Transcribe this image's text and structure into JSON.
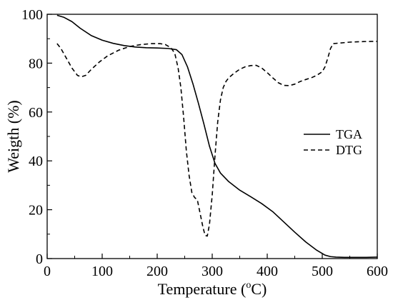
{
  "chart_data": {
    "type": "line",
    "title": "",
    "xlabel": "Temperature (",
    "xlabel_unit_sup": "o",
    "xlabel_unit_end": "C)",
    "ylabel": "Weigth (%)",
    "xlim": [
      0,
      600
    ],
    "ylim": [
      0,
      100
    ],
    "xticks": [
      0,
      100,
      200,
      300,
      400,
      500,
      600
    ],
    "yticks": [
      0,
      20,
      40,
      60,
      80,
      100
    ],
    "grid": false,
    "legend_position": "center-right",
    "series": [
      {
        "name": "TGA",
        "style": "solid",
        "color": "#000000",
        "x": [
          18,
          30,
          45,
          60,
          80,
          100,
          120,
          140,
          160,
          180,
          200,
          220,
          235,
          245,
          255,
          265,
          275,
          285,
          295,
          305,
          315,
          330,
          350,
          370,
          390,
          410,
          430,
          450,
          470,
          490,
          505,
          515,
          525,
          540,
          560,
          580,
          600
        ],
        "y": [
          99.6,
          98.8,
          97,
          94.3,
          91.3,
          89.4,
          88.1,
          87.2,
          86.6,
          86.3,
          86.2,
          86.0,
          85.5,
          83.5,
          78.5,
          71.5,
          63.5,
          55,
          46,
          39,
          35,
          31.5,
          28,
          25.3,
          22.5,
          19.2,
          15,
          10.8,
          6.8,
          3.4,
          1.4,
          0.8,
          0.6,
          0.5,
          0.5,
          0.5,
          0.6
        ]
      },
      {
        "name": "DTG",
        "style": "dashed",
        "color": "#000000",
        "x": [
          18,
          25,
          35,
          45,
          55,
          62,
          70,
          80,
          95,
          110,
          130,
          150,
          170,
          190,
          205,
          215,
          225,
          232,
          238,
          243,
          248,
          253,
          258,
          263,
          268,
          273,
          278,
          283,
          287,
          291,
          295,
          300,
          305,
          310,
          315,
          320,
          325,
          330,
          340,
          350,
          360,
          370,
          380,
          390,
          400,
          410,
          420,
          430,
          440,
          450,
          460,
          470,
          480,
          490,
          500,
          505,
          510,
          515,
          520,
          530,
          550,
          570,
          590,
          600
        ],
        "y": [
          88,
          86,
          82,
          78,
          75,
          74.4,
          75,
          77.4,
          80.5,
          83,
          85.3,
          86.8,
          87.6,
          88,
          88,
          87.6,
          86.3,
          84,
          78,
          70,
          58,
          44,
          34,
          27,
          25,
          24,
          18.5,
          13,
          9.5,
          9.2,
          14,
          26,
          42,
          56,
          65,
          70,
          72.5,
          74,
          75.9,
          77.5,
          78.5,
          79,
          79.1,
          78,
          76.1,
          74,
          72,
          70.9,
          70.8,
          71.4,
          72.5,
          73.3,
          74,
          75,
          76.5,
          78.5,
          82,
          86,
          88,
          88.2,
          88.6,
          88.8,
          88.9,
          88.9
        ]
      }
    ]
  }
}
